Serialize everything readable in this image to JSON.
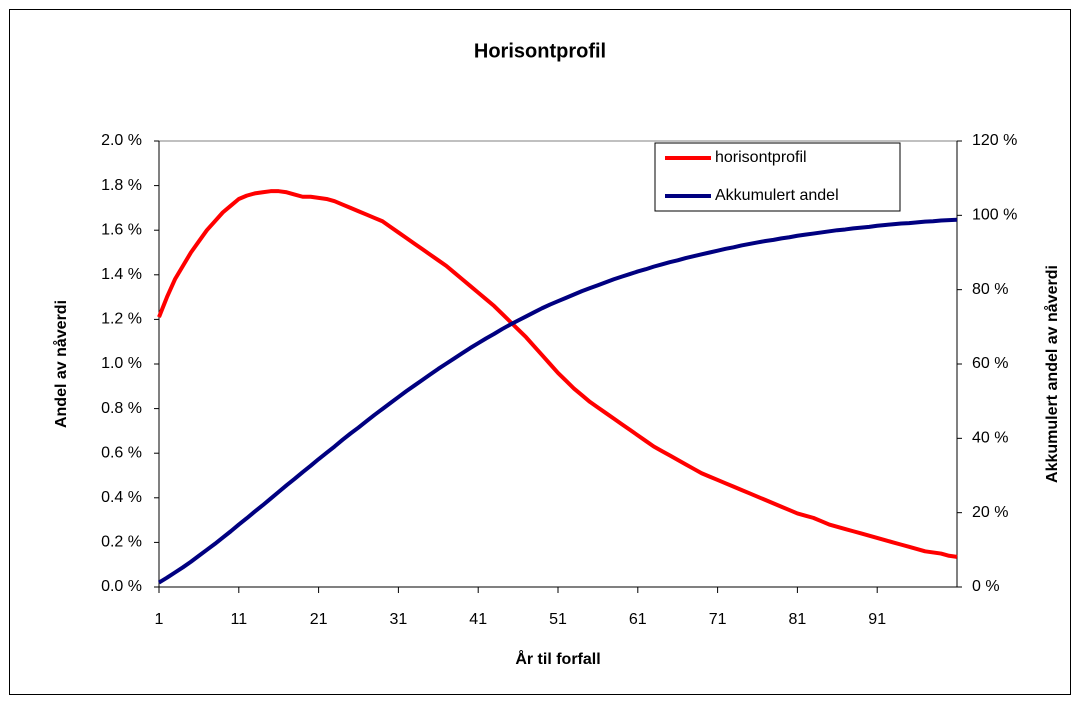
{
  "chart_data": {
    "type": "line",
    "title": "Horisontprofil",
    "x_label": "År til forfall",
    "y_label": "Andel av nåverdi",
    "y2_label": "Akkumulert andel av nåverdi",
    "legend": "top-right",
    "grid": false,
    "x": [
      1,
      2,
      3,
      4,
      5,
      6,
      7,
      8,
      9,
      10,
      11,
      12,
      13,
      14,
      15,
      16,
      17,
      18,
      19,
      20,
      21,
      22,
      23,
      24,
      25,
      26,
      27,
      28,
      29,
      30,
      31,
      32,
      33,
      34,
      35,
      36,
      37,
      38,
      39,
      40,
      41,
      42,
      43,
      44,
      45,
      46,
      47,
      48,
      49,
      50,
      51,
      52,
      53,
      54,
      55,
      56,
      57,
      58,
      59,
      60,
      61,
      62,
      63,
      64,
      65,
      66,
      67,
      68,
      69,
      70,
      71,
      72,
      73,
      74,
      75,
      76,
      77,
      78,
      79,
      80,
      81,
      82,
      83,
      84,
      85,
      86,
      87,
      88,
      89,
      90,
      91,
      92,
      93,
      94,
      95,
      96,
      97,
      98,
      99,
      100,
      101
    ],
    "xlim": [
      1,
      101
    ],
    "xticks": [
      1,
      11,
      21,
      31,
      41,
      51,
      61,
      71,
      81,
      91
    ],
    "ylim": [
      0,
      2
    ],
    "yticks": [
      {
        "value": 0,
        "label": "0.0 %"
      },
      {
        "value": 0.2,
        "label": "0.2 %"
      },
      {
        "value": 0.4,
        "label": "0.4 %"
      },
      {
        "value": 0.6,
        "label": "0.6 %"
      },
      {
        "value": 0.8,
        "label": "0.8 %"
      },
      {
        "value": 1.0,
        "label": "1.0 %"
      },
      {
        "value": 1.2,
        "label": "1.2 %"
      },
      {
        "value": 1.4,
        "label": "1.4 %"
      },
      {
        "value": 1.6,
        "label": "1.6 %"
      },
      {
        "value": 1.8,
        "label": "1.8 %"
      },
      {
        "value": 2.0,
        "label": "2.0 %"
      }
    ],
    "y2lim": [
      0,
      120
    ],
    "y2ticks": [
      {
        "value": 0,
        "label": "0 %"
      },
      {
        "value": 20,
        "label": "20 %"
      },
      {
        "value": 40,
        "label": "40 %"
      },
      {
        "value": 60,
        "label": "60 %"
      },
      {
        "value": 80,
        "label": "80 %"
      },
      {
        "value": 100,
        "label": "100 %"
      },
      {
        "value": 120,
        "label": "120 %"
      }
    ],
    "series": [
      {
        "name": "horisontprofil",
        "color": "#ff0000",
        "axis": "y",
        "values": [
          1.21,
          1.3,
          1.38,
          1.44,
          1.5,
          1.55,
          1.6,
          1.64,
          1.68,
          1.71,
          1.74,
          1.755,
          1.765,
          1.77,
          1.775,
          1.775,
          1.77,
          1.76,
          1.75,
          1.75,
          1.745,
          1.74,
          1.73,
          1.715,
          1.7,
          1.685,
          1.67,
          1.655,
          1.64,
          1.615,
          1.59,
          1.565,
          1.54,
          1.515,
          1.49,
          1.465,
          1.44,
          1.41,
          1.38,
          1.35,
          1.32,
          1.29,
          1.26,
          1.225,
          1.19,
          1.155,
          1.12,
          1.08,
          1.04,
          1.0,
          0.96,
          0.925,
          0.89,
          0.86,
          0.83,
          0.805,
          0.78,
          0.755,
          0.73,
          0.705,
          0.68,
          0.655,
          0.63,
          0.61,
          0.59,
          0.57,
          0.55,
          0.53,
          0.51,
          0.495,
          0.48,
          0.465,
          0.45,
          0.435,
          0.42,
          0.405,
          0.39,
          0.375,
          0.36,
          0.345,
          0.33,
          0.32,
          0.31,
          0.295,
          0.28,
          0.27,
          0.26,
          0.25,
          0.24,
          0.23,
          0.22,
          0.21,
          0.2,
          0.19,
          0.18,
          0.17,
          0.16,
          0.155,
          0.15,
          0.14,
          0.135
        ]
      },
      {
        "name": "Akkumulert andel",
        "color": "#000080",
        "axis": "y2",
        "values": [
          1.2,
          2.5,
          3.9,
          5.3,
          6.8,
          8.4,
          10.0,
          11.6,
          13.3,
          15.0,
          16.8,
          18.5,
          20.3,
          22.0,
          23.8,
          25.6,
          27.4,
          29.1,
          30.9,
          32.6,
          34.4,
          36.1,
          37.8,
          39.6,
          41.3,
          42.9,
          44.6,
          46.3,
          47.9,
          49.5,
          51.1,
          52.7,
          54.2,
          55.7,
          57.2,
          58.7,
          60.1,
          61.5,
          62.9,
          64.3,
          65.6,
          66.9,
          68.1,
          69.4,
          70.6,
          71.7,
          72.8,
          73.9,
          75.0,
          76.0,
          76.9,
          77.8,
          78.7,
          79.6,
          80.4,
          81.2,
          82.0,
          82.8,
          83.5,
          84.2,
          84.9,
          85.5,
          86.2,
          86.8,
          87.4,
          87.9,
          88.5,
          89.0,
          89.5,
          90.0,
          90.5,
          91.0,
          91.4,
          91.9,
          92.3,
          92.7,
          93.1,
          93.4,
          93.8,
          94.1,
          94.5,
          94.8,
          95.1,
          95.4,
          95.7,
          96.0,
          96.2,
          96.5,
          96.7,
          96.9,
          97.2,
          97.4,
          97.6,
          97.8,
          97.9,
          98.1,
          98.3,
          98.4,
          98.6,
          98.7,
          98.8
        ]
      }
    ]
  }
}
